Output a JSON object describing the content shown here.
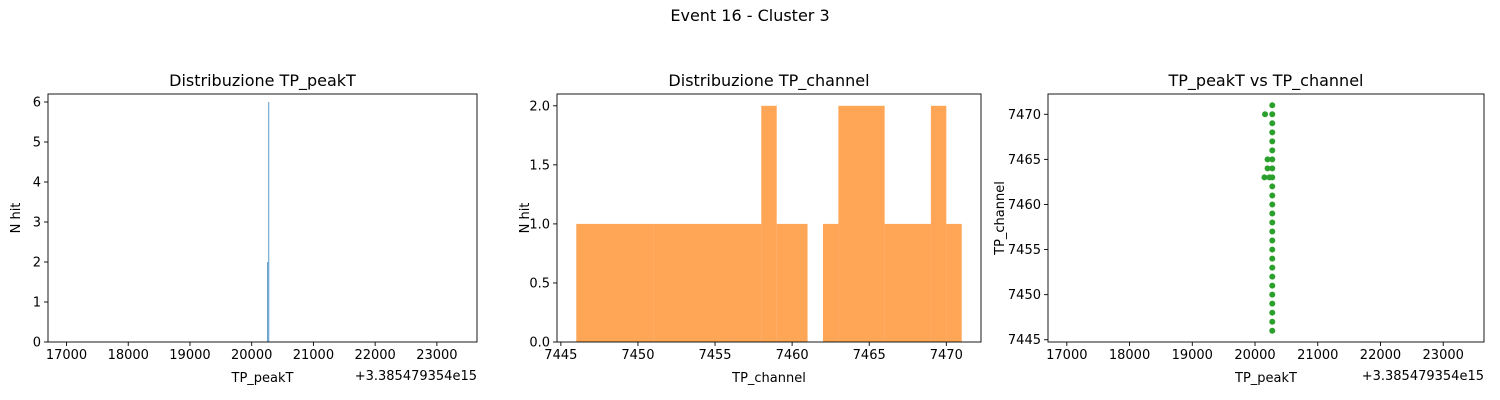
{
  "suptitle": "Event 16 - Cluster 3",
  "chart_data": [
    {
      "type": "bar",
      "title": "Distribuzione TP_peakT",
      "xlabel": "TP_peakT",
      "ylabel": "N hit",
      "offset_label": "+3.385479354e15",
      "xlim": [
        16700,
        23650
      ],
      "ylim": [
        0,
        6.2
      ],
      "xticks": [
        17000,
        18000,
        19000,
        20000,
        21000,
        22000,
        23000
      ],
      "yticks": [
        0,
        1,
        2,
        3,
        4,
        5,
        6
      ],
      "bars": [
        {
          "x0": 20250,
          "x1": 20262,
          "value": 2
        },
        {
          "x0": 20268,
          "x1": 20280,
          "value": 6
        }
      ],
      "color": "#1f77b4"
    },
    {
      "type": "bar",
      "title": "Distribuzione TP_channel",
      "xlabel": "TP_channel",
      "ylabel": "N hit",
      "xlim": [
        7444.75,
        7472.25
      ],
      "ylim": [
        0,
        2.1
      ],
      "xticks": [
        7445,
        7450,
        7455,
        7460,
        7465,
        7470
      ],
      "yticks": [
        0.0,
        0.5,
        1.0,
        1.5,
        2.0
      ],
      "bars": [
        {
          "x0": 7446.0,
          "x1": 7451.0,
          "value": 1
        },
        {
          "x0": 7451.0,
          "x1": 7456.0,
          "value": 1
        },
        {
          "x0": 7456.0,
          "x1": 7458.0,
          "value": 1
        },
        {
          "x0": 7458.0,
          "x1": 7459.0,
          "value": 2
        },
        {
          "x0": 7459.0,
          "x1": 7461.0,
          "value": 1
        },
        {
          "x0": 7462.0,
          "x1": 7463.0,
          "value": 1
        },
        {
          "x0": 7463.0,
          "x1": 7466.0,
          "value": 2
        },
        {
          "x0": 7466.0,
          "x1": 7469.0,
          "value": 1
        },
        {
          "x0": 7469.0,
          "x1": 7470.0,
          "value": 2
        },
        {
          "x0": 7470.0,
          "x1": 7471.0,
          "value": 1
        }
      ],
      "color": "#ff7f0e"
    },
    {
      "type": "scatter",
      "title": "TP_peakT vs TP_channel",
      "xlabel": "TP_peakT",
      "ylabel": "TP_channel",
      "offset_label": "+3.385479354e15",
      "xlim": [
        16700,
        23650
      ],
      "ylim": [
        7444.75,
        7472.25
      ],
      "xticks": [
        17000,
        18000,
        19000,
        20000,
        21000,
        22000,
        23000
      ],
      "yticks": [
        7445,
        7450,
        7455,
        7460,
        7465,
        7470
      ],
      "points": [
        [
          20275,
          7446
        ],
        [
          20275,
          7447
        ],
        [
          20275,
          7448
        ],
        [
          20275,
          7449
        ],
        [
          20275,
          7450
        ],
        [
          20275,
          7451
        ],
        [
          20275,
          7452
        ],
        [
          20275,
          7453
        ],
        [
          20275,
          7454
        ],
        [
          20275,
          7455
        ],
        [
          20275,
          7456
        ],
        [
          20275,
          7457
        ],
        [
          20275,
          7458
        ],
        [
          20275,
          7459
        ],
        [
          20275,
          7460
        ],
        [
          20275,
          7461
        ],
        [
          20275,
          7462
        ],
        [
          20275,
          7463
        ],
        [
          20275,
          7464
        ],
        [
          20275,
          7465
        ],
        [
          20275,
          7466
        ],
        [
          20275,
          7467
        ],
        [
          20275,
          7468
        ],
        [
          20275,
          7469
        ],
        [
          20275,
          7470
        ],
        [
          20275,
          7471
        ],
        [
          20160,
          7470
        ],
        [
          20200,
          7465
        ],
        [
          20200,
          7464
        ],
        [
          20150,
          7463
        ],
        [
          20230,
          7463
        ]
      ],
      "color": "#2ca02c"
    }
  ]
}
